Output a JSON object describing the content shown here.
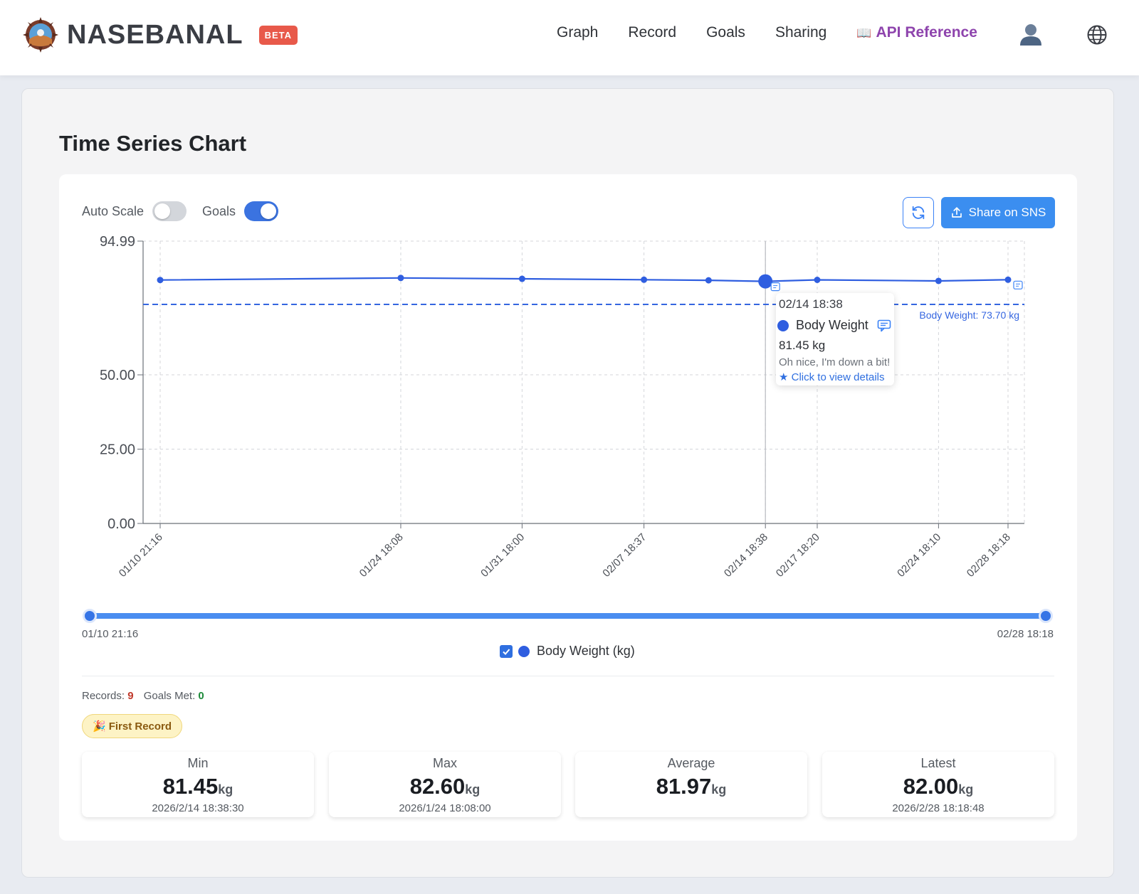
{
  "header": {
    "brand_name": "NASEBANAL",
    "beta_label": "BETA",
    "nav": [
      {
        "label": "Graph"
      },
      {
        "label": "Record"
      },
      {
        "label": "Goals"
      },
      {
        "label": "Sharing"
      },
      {
        "label": "API Reference",
        "icon": "book-icon"
      }
    ],
    "icons": [
      "logo-icon",
      "user-icon",
      "globe-icon"
    ]
  },
  "page": {
    "title": "Time Series Chart"
  },
  "controls": {
    "auto_scale_label": "Auto Scale",
    "auto_scale_on": false,
    "goals_label": "Goals",
    "goals_on": true,
    "share_label": "Share on SNS"
  },
  "chart_data": {
    "type": "line",
    "y_ticks": [
      "94.99",
      "50.00",
      "25.00",
      "0.00"
    ],
    "ylim": [
      0,
      94.99
    ],
    "grid": true,
    "x_tick_labels": [
      "01/10 21:16",
      "01/24 18:08",
      "01/31 18:00",
      "02/07 18:37",
      "02/14 18:38",
      "02/17 18:20",
      "02/24 18:10",
      "02/28 18:18"
    ],
    "series": [
      {
        "name": "Body Weight (kg)",
        "color": "#2f5ee0",
        "points": [
          {
            "x": "2026-01-10 21:16",
            "y": 81.9
          },
          {
            "x": "2026-01-24 18:08",
            "y": 82.6
          },
          {
            "x": "2026-01-31 18:00",
            "y": 82.3
          },
          {
            "x": "2026-02-07 18:37",
            "y": 82.0
          },
          {
            "x": "2026-02-11 12:00",
            "y": 81.8
          },
          {
            "x": "2026-02-14 18:38",
            "y": 81.45
          },
          {
            "x": "2026-02-17 18:20",
            "y": 81.95
          },
          {
            "x": "2026-02-24 18:10",
            "y": 81.6
          },
          {
            "x": "2026-02-28 18:18",
            "y": 82.0
          }
        ]
      }
    ],
    "goal_line": {
      "value": 73.7,
      "label": "Body Weight: 73.70 kg"
    }
  },
  "tooltip": {
    "time": "02/14 18:38",
    "series": "Body Weight",
    "value": "81.45 kg",
    "note": "Oh nice, I'm down a bit!",
    "link": "★ Click to view details"
  },
  "range": {
    "start": "01/10 21:16",
    "end": "02/28 18:18"
  },
  "legend": {
    "label": "Body Weight (kg)",
    "checked": true
  },
  "summary": {
    "records_label": "Records:",
    "records": "9",
    "goals_met_label": "Goals Met:",
    "goals_met": "0"
  },
  "badge": {
    "emoji": "🎉",
    "label": "First Record"
  },
  "stats": [
    {
      "label": "Min",
      "value": "81.45",
      "unit": "kg",
      "date": "2026/2/14 18:38:30"
    },
    {
      "label": "Max",
      "value": "82.60",
      "unit": "kg",
      "date": "2026/1/24 18:08:00"
    },
    {
      "label": "Average",
      "value": "81.97",
      "unit": "kg",
      "date": ""
    },
    {
      "label": "Latest",
      "value": "82.00",
      "unit": "kg",
      "date": "2026/2/28 18:18:48"
    }
  ]
}
